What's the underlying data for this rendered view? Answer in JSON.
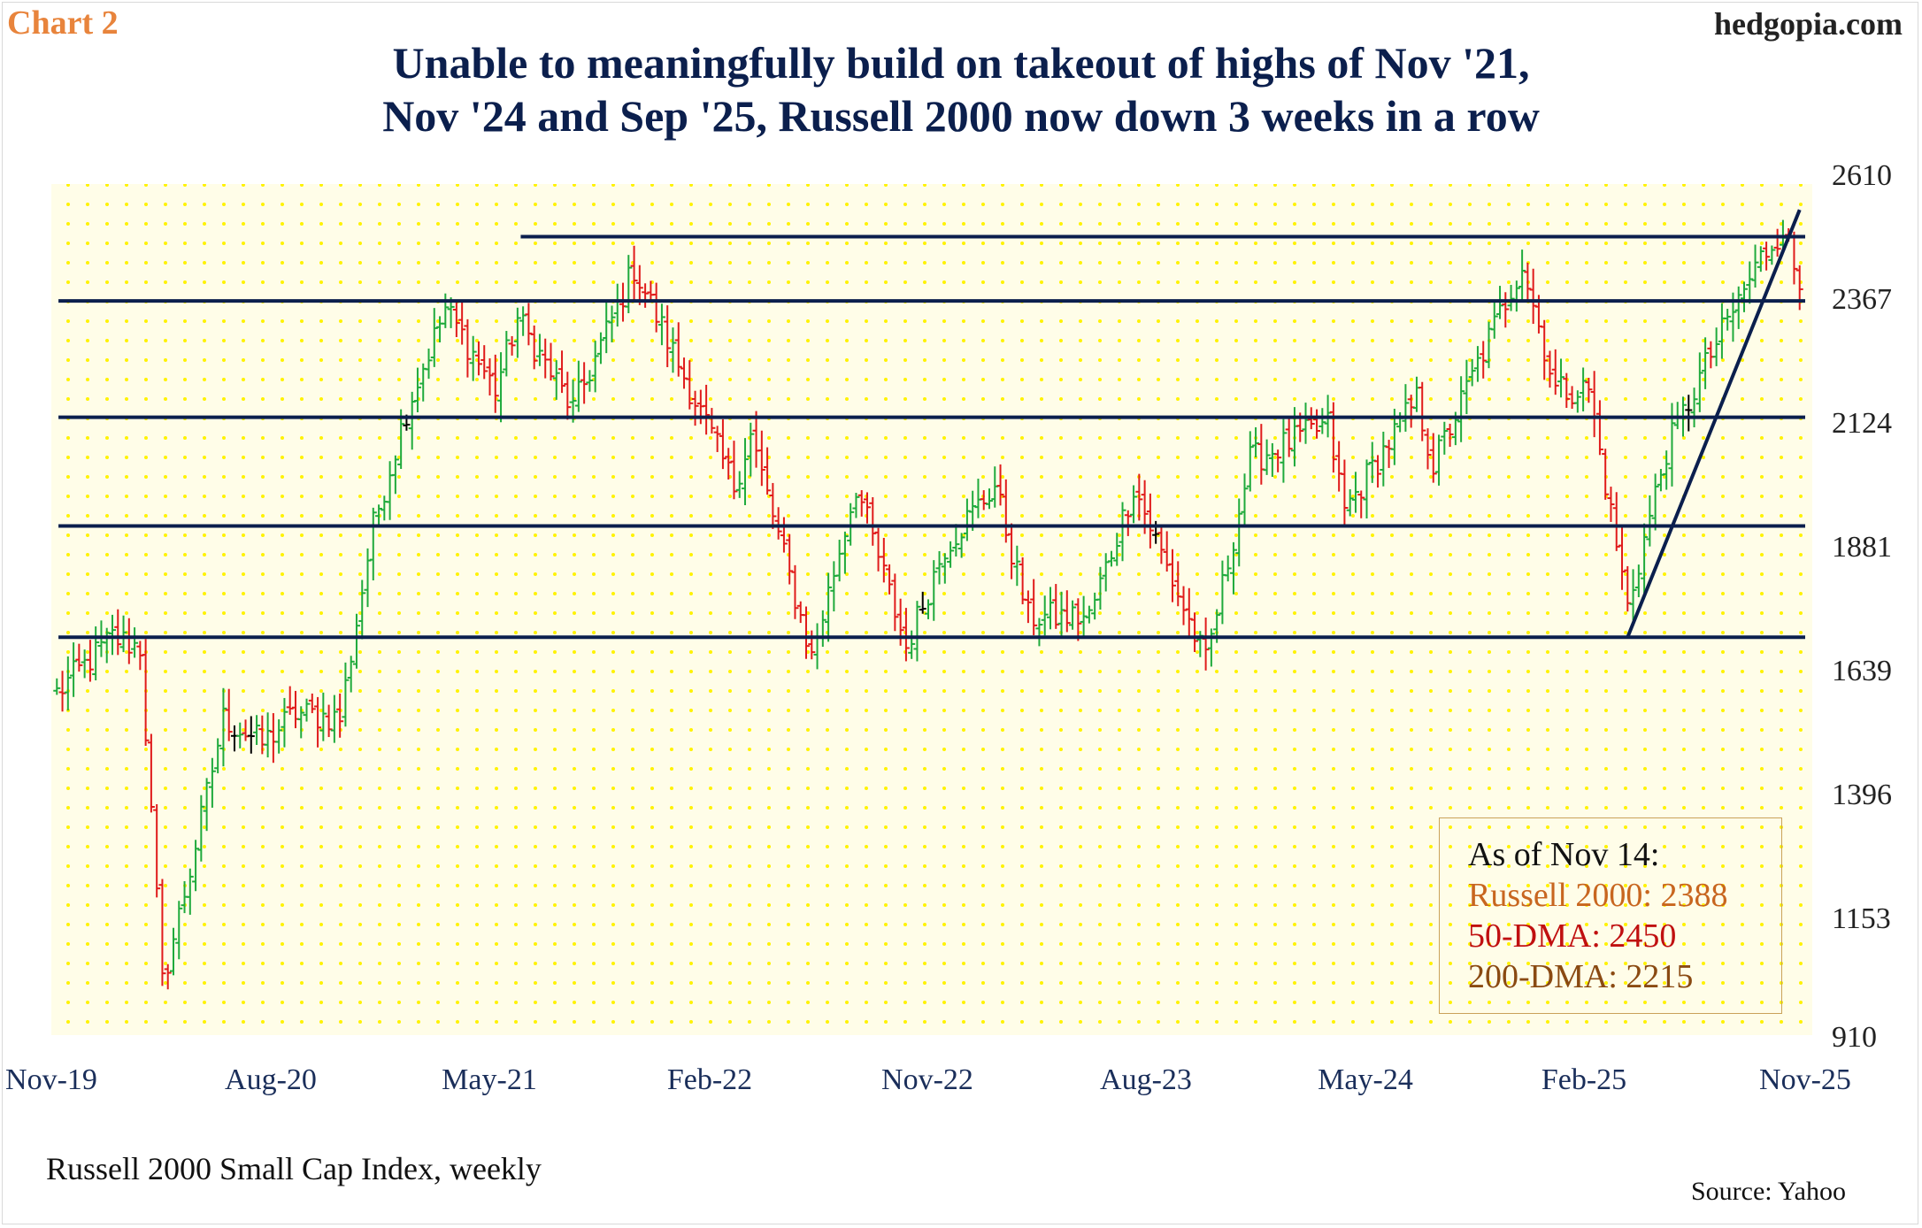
{
  "chart_label": "Chart 2",
  "site": "hedgopia.com",
  "title_line1": "Unable to meaningfully build on takeout of highs of Nov '21,",
  "title_line2": "Nov '24 and Sep '25, Russell 2000 now down 3 weeks in a row",
  "subtitle": "Russell 2000 Small Cap Index, weekly",
  "source": "Source: Yahoo",
  "info_box": {
    "as_of": "As of Nov 14:",
    "russell": "Russell 2000: 2388",
    "dma50": "50-DMA: 2450",
    "dma200": "200-DMA: 2215"
  },
  "colors": {
    "up": "#1faa3c",
    "down": "#e01b1b",
    "flat": "#000000",
    "lines": "#0b1f4d",
    "background": "#fffde8",
    "dots": "#fff200",
    "title": "#0b1f4d",
    "chart_label": "#e8843c"
  },
  "chart_data": {
    "type": "ohlc",
    "frequency": "weekly",
    "x_ticks": [
      "Nov-19",
      "Aug-20",
      "May-21",
      "Feb-22",
      "Nov-22",
      "Aug-23",
      "May-24",
      "Feb-25",
      "Nov-25"
    ],
    "y_ticks": [
      910,
      1153,
      1396,
      1639,
      1881,
      2124,
      2367,
      2610
    ],
    "ylim": [
      910,
      2610
    ],
    "xlim": [
      "2019-11-01",
      "2025-11-21"
    ],
    "grid": "dotted",
    "horizontal_lines": [
      {
        "y": 2492,
        "from": "2021-06-15",
        "to": "2025-11-21"
      },
      {
        "y": 2365,
        "from": "2019-11-10",
        "to": "2025-11-21"
      },
      {
        "y": 2135,
        "from": "2019-11-10",
        "to": "2025-11-21"
      },
      {
        "y": 1920,
        "from": "2019-11-10",
        "to": "2025-11-21"
      },
      {
        "y": 1700,
        "from": "2019-11-10",
        "to": "2025-11-21"
      }
    ],
    "trendline": {
      "from": {
        "x": "2025-04-11",
        "y": 1700
      },
      "to": {
        "x": "2025-11-14",
        "y": 2545
      }
    },
    "anchors": [
      {
        "date": "2019-11-08",
        "close": 1590
      },
      {
        "date": "2020-01-17",
        "close": 1700
      },
      {
        "date": "2020-02-21",
        "close": 1680
      },
      {
        "date": "2020-03-20",
        "close": 1015
      },
      {
        "date": "2020-04-24",
        "close": 1240
      },
      {
        "date": "2020-06-05",
        "close": 1540
      },
      {
        "date": "2020-07-24",
        "close": 1490
      },
      {
        "date": "2020-09-04",
        "close": 1550
      },
      {
        "date": "2020-10-30",
        "close": 1540
      },
      {
        "date": "2020-12-11",
        "close": 1920
      },
      {
        "date": "2021-01-22",
        "close": 2150
      },
      {
        "date": "2021-03-12",
        "close": 2350
      },
      {
        "date": "2021-05-14",
        "close": 2190
      },
      {
        "date": "2021-06-11",
        "close": 2330
      },
      {
        "date": "2021-08-20",
        "close": 2150
      },
      {
        "date": "2021-11-05",
        "close": 2430
      },
      {
        "date": "2021-12-31",
        "close": 2240
      },
      {
        "date": "2022-03-11",
        "close": 2000
      },
      {
        "date": "2022-04-01",
        "close": 2100
      },
      {
        "date": "2022-06-17",
        "close": 1660
      },
      {
        "date": "2022-08-12",
        "close": 2000
      },
      {
        "date": "2022-10-14",
        "close": 1680
      },
      {
        "date": "2022-12-02",
        "close": 1880
      },
      {
        "date": "2023-02-03",
        "close": 2000
      },
      {
        "date": "2023-03-17",
        "close": 1740
      },
      {
        "date": "2023-06-02",
        "close": 1740
      },
      {
        "date": "2023-07-28",
        "close": 2000
      },
      {
        "date": "2023-10-27",
        "close": 1650
      },
      {
        "date": "2023-12-22",
        "close": 2050
      },
      {
        "date": "2024-03-29",
        "close": 2120
      },
      {
        "date": "2024-04-19",
        "close": 1950
      },
      {
        "date": "2024-07-19",
        "close": 2170
      },
      {
        "date": "2024-08-09",
        "close": 2040
      },
      {
        "date": "2024-11-29",
        "close": 2440
      },
      {
        "date": "2025-01-10",
        "close": 2190
      },
      {
        "date": "2025-02-21",
        "close": 2190
      },
      {
        "date": "2025-04-11",
        "close": 1760
      },
      {
        "date": "2025-05-30",
        "close": 2070
      },
      {
        "date": "2025-07-25",
        "close": 2260
      },
      {
        "date": "2025-09-26",
        "close": 2450
      },
      {
        "date": "2025-10-24",
        "close": 2510
      },
      {
        "date": "2025-11-14",
        "close": 2388
      }
    ]
  }
}
